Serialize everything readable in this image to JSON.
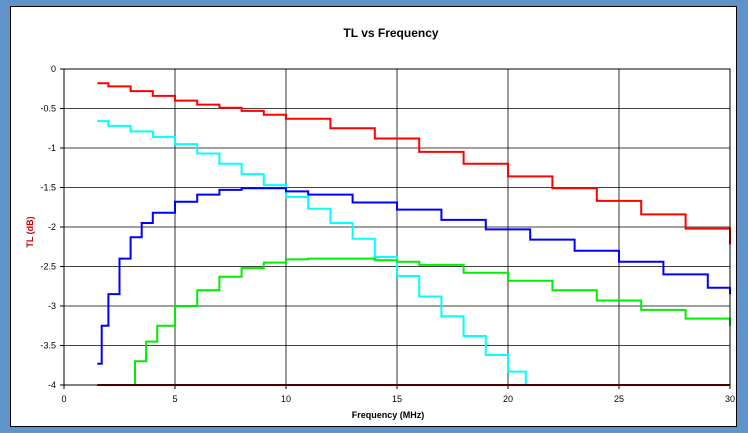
{
  "chart_data": {
    "type": "line",
    "title": "TL  vs  Frequency",
    "xlabel": "Frequency (MHz)",
    "ylabel": "TL (dB)",
    "xlim": [
      0,
      30
    ],
    "ylim": [
      -4,
      0
    ],
    "x_ticks": [
      "0",
      "5",
      "10",
      "15",
      "20",
      "25",
      "30"
    ],
    "y_ticks": [
      "0",
      "-0.5",
      "-1",
      "-1.5",
      "-2",
      "-2.5",
      "-3",
      "-3.5",
      "-4"
    ],
    "grid": true,
    "step": true,
    "series": [
      {
        "color": "#ff0000",
        "x": [
          1.5,
          2,
          3,
          4,
          5,
          6,
          7,
          8,
          9,
          10,
          12,
          14,
          16,
          18,
          20,
          22,
          24,
          26,
          28,
          30
        ],
        "y": [
          -0.18,
          -0.22,
          -0.28,
          -0.34,
          -0.4,
          -0.45,
          -0.49,
          -0.53,
          -0.58,
          -0.63,
          -0.75,
          -0.88,
          -1.05,
          -1.2,
          -1.36,
          -1.51,
          -1.67,
          -1.84,
          -2.02,
          -2.22
        ]
      },
      {
        "color": "#00ffff",
        "x": [
          1.5,
          2,
          3,
          4,
          5,
          6,
          7,
          8,
          9,
          10,
          11,
          12,
          13,
          14,
          15,
          16,
          17,
          18,
          19,
          20,
          20.8,
          30
        ],
        "y": [
          -0.66,
          -0.72,
          -0.79,
          -0.86,
          -0.95,
          -1.07,
          -1.2,
          -1.33,
          -1.47,
          -1.62,
          -1.77,
          -1.95,
          -2.15,
          -2.38,
          -2.62,
          -2.88,
          -3.13,
          -3.38,
          -3.62,
          -3.83,
          -4.0,
          -4.0
        ]
      },
      {
        "color": "#0000ff",
        "x": [
          1.5,
          1.7,
          2,
          2.5,
          3,
          3.5,
          4,
          5,
          6,
          7,
          8,
          9,
          10,
          11,
          13,
          15,
          17,
          19,
          21,
          23,
          25,
          27,
          29,
          30
        ],
        "y": [
          -3.73,
          -3.25,
          -2.85,
          -2.4,
          -2.13,
          -1.95,
          -1.82,
          -1.68,
          -1.59,
          -1.53,
          -1.51,
          -1.51,
          -1.55,
          -1.59,
          -1.69,
          -1.78,
          -1.91,
          -2.03,
          -2.16,
          -2.3,
          -2.44,
          -2.6,
          -2.77,
          -2.85
        ]
      },
      {
        "color": "#00ee00",
        "x": [
          1.5,
          2.8,
          3.2,
          3.7,
          4.2,
          5,
          6,
          7,
          8,
          9,
          10,
          11,
          12,
          13,
          14,
          15,
          16,
          18,
          20,
          22,
          24,
          26,
          28,
          30
        ],
        "y": [
          -4.0,
          -4.0,
          -3.7,
          -3.45,
          -3.25,
          -3.0,
          -2.8,
          -2.63,
          -2.52,
          -2.45,
          -2.41,
          -2.4,
          -2.4,
          -2.4,
          -2.42,
          -2.44,
          -2.48,
          -2.58,
          -2.68,
          -2.8,
          -2.93,
          -3.05,
          -3.16,
          -3.25
        ]
      },
      {
        "color": "#990000",
        "x": [
          1.5,
          30
        ],
        "y": [
          -4.0,
          -4.0
        ]
      }
    ]
  }
}
